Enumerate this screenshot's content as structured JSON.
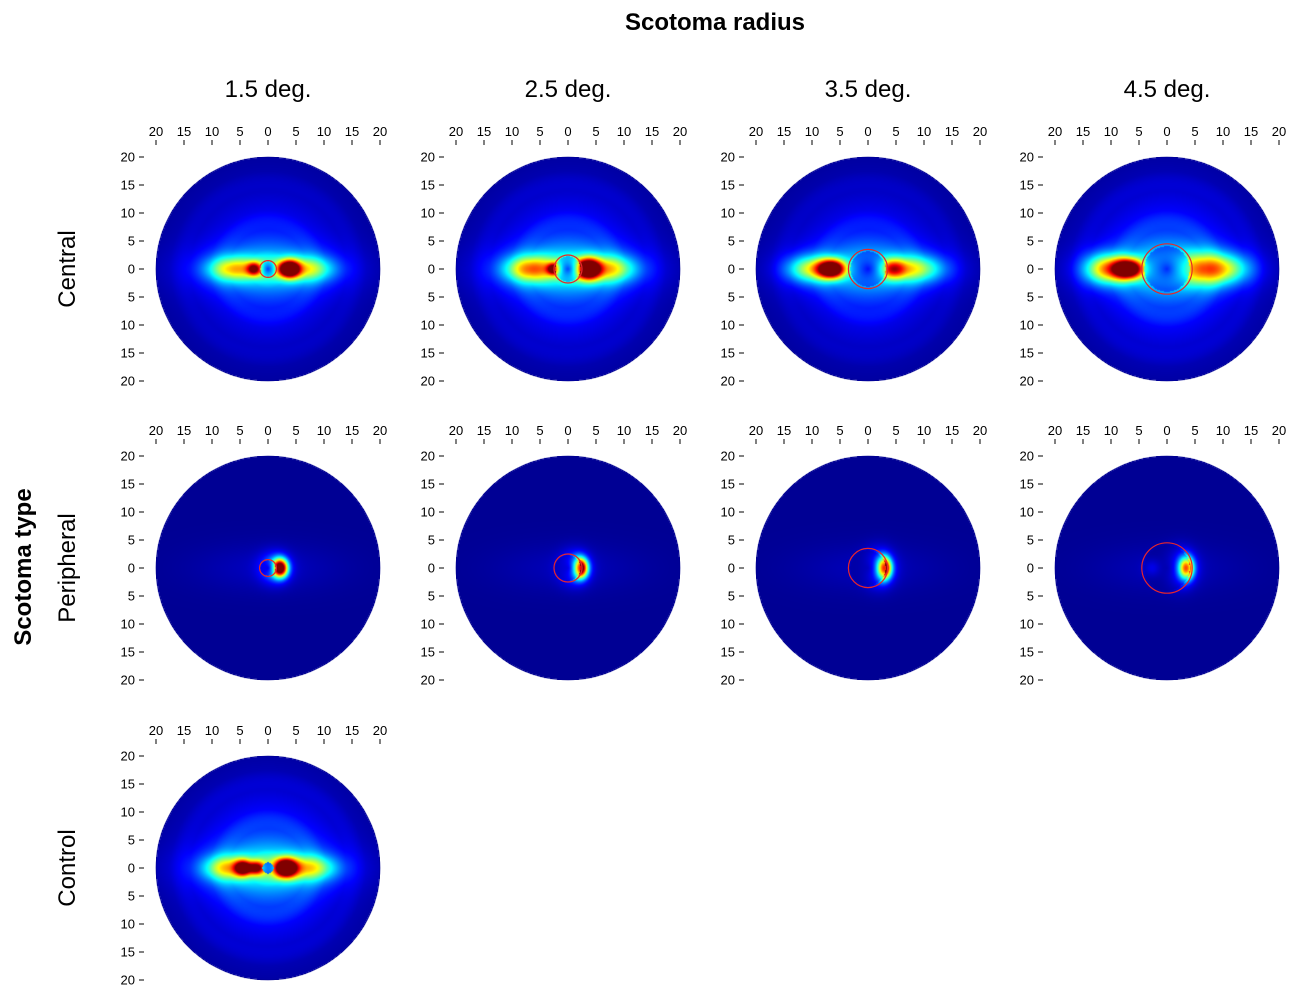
{
  "chart_data": {
    "type": "heatmap",
    "title": "Scotoma radius",
    "ylabel": "Scotoma type",
    "column_labels": [
      "1.5 deg.",
      "2.5 deg.",
      "3.5 deg.",
      "4.5 deg."
    ],
    "row_labels": [
      "Central",
      "Peripheral",
      "Control"
    ],
    "x_ticks": [
      "20",
      "15",
      "10",
      "5",
      "0",
      "5",
      "10",
      "15",
      "20"
    ],
    "y_ticks": [
      "20",
      "15",
      "10",
      "5",
      "0",
      "5",
      "10",
      "15",
      "20"
    ],
    "x_values": [
      -20,
      -15,
      -10,
      -5,
      0,
      5,
      10,
      15,
      20
    ],
    "y_values": [
      20,
      15,
      10,
      5,
      0,
      -5,
      -10,
      -15,
      -20
    ],
    "xlim": [
      -20,
      20
    ],
    "ylim": [
      -20,
      20
    ],
    "field_radius_deg": 20,
    "colormap": "jet",
    "colors": {
      "scotoma_outline": "#e8262b",
      "background": "#00008f"
    },
    "panels": [
      {
        "row": "Central",
        "radius_deg": 1.5,
        "scotoma": 1.5,
        "base": 0.16,
        "spread": 0.5,
        "inner_ring": 0.18,
        "hotspots": [
          {
            "x": 3.8,
            "y": 0,
            "sx": 1.2,
            "sy": 1.0,
            "amp": 1.0
          },
          {
            "x": -2.5,
            "y": 0,
            "sx": 0.9,
            "sy": 0.8,
            "amp": 0.52
          },
          {
            "x": -6,
            "y": 0,
            "sx": 3.2,
            "sy": 1.5,
            "amp": 0.42
          },
          {
            "x": 6.5,
            "y": 0,
            "sx": 3.5,
            "sy": 1.5,
            "amp": 0.38
          }
        ]
      },
      {
        "row": "Central",
        "radius_deg": 2.5,
        "scotoma": 2.5,
        "base": 0.18,
        "spread": 0.58,
        "inner_ring": 0.12,
        "hotspots": [
          {
            "x": 3.6,
            "y": 0,
            "sx": 1.4,
            "sy": 1.2,
            "amp": 1.0
          },
          {
            "x": -2.6,
            "y": 0,
            "sx": 0.8,
            "sy": 0.7,
            "amp": 0.58
          },
          {
            "x": -6.5,
            "y": 0,
            "sx": 3.2,
            "sy": 1.6,
            "amp": 0.48
          },
          {
            "x": 7,
            "y": 0,
            "sx": 3.5,
            "sy": 1.6,
            "amp": 0.4
          }
        ]
      },
      {
        "row": "Central",
        "radius_deg": 3.5,
        "scotoma": 3.5,
        "base": 0.16,
        "spread": 0.52,
        "inner_ring": 0.08,
        "hotspots": [
          {
            "x": -6.5,
            "y": 0,
            "sx": 1.6,
            "sy": 1.1,
            "amp": 1.0
          },
          {
            "x": 4.5,
            "y": 0,
            "sx": 1.6,
            "sy": 1.2,
            "amp": 0.46
          },
          {
            "x": -10,
            "y": 0,
            "sx": 3,
            "sy": 1.6,
            "amp": 0.42
          },
          {
            "x": 8.5,
            "y": 0,
            "sx": 3.5,
            "sy": 1.6,
            "amp": 0.36
          }
        ]
      },
      {
        "row": "Central",
        "radius_deg": 4.5,
        "scotoma": 4.5,
        "base": 0.2,
        "spread": 0.6,
        "inner_ring": 0.06,
        "hotspots": [
          {
            "x": -7,
            "y": 0,
            "sx": 1.8,
            "sy": 1.2,
            "amp": 1.0
          },
          {
            "x": -11,
            "y": 0,
            "sx": 2.6,
            "sy": 1.8,
            "amp": 0.5
          },
          {
            "x": 6.5,
            "y": 0,
            "sx": 3,
            "sy": 2,
            "amp": 0.38
          },
          {
            "x": 11,
            "y": 0,
            "sx": 3,
            "sy": 1.8,
            "amp": 0.28
          }
        ]
      },
      {
        "row": "Peripheral",
        "radius_deg": 1.5,
        "scotoma": 1.5,
        "base": 0.0,
        "spread": 0.12,
        "inner_ring": 0.0,
        "hotspots": [
          {
            "x": 2.2,
            "y": 0,
            "sx": 0.9,
            "sy": 1.1,
            "amp": 1.0
          },
          {
            "x": 1.2,
            "y": 0,
            "sx": 1.8,
            "sy": 1.8,
            "amp": 0.25
          }
        ]
      },
      {
        "row": "Peripheral",
        "radius_deg": 2.5,
        "scotoma": 2.5,
        "base": 0.0,
        "spread": 0.1,
        "inner_ring": 0.0,
        "hotspots": [
          {
            "x": 2.2,
            "y": 0,
            "sx": 0.9,
            "sy": 1.2,
            "amp": 1.0
          },
          {
            "x": 1.2,
            "y": 0,
            "sx": 1.8,
            "sy": 2,
            "amp": 0.22
          }
        ]
      },
      {
        "row": "Peripheral",
        "radius_deg": 3.5,
        "scotoma": 3.5,
        "base": 0.0,
        "spread": 0.1,
        "inner_ring": 0.0,
        "hotspots": [
          {
            "x": 2.8,
            "y": 0,
            "sx": 0.9,
            "sy": 1.3,
            "amp": 1.0
          },
          {
            "x": 2.0,
            "y": 0,
            "sx": 1.8,
            "sy": 2.2,
            "amp": 0.22
          }
        ]
      },
      {
        "row": "Peripheral",
        "radius_deg": 4.5,
        "scotoma": 4.5,
        "base": 0.0,
        "spread": 0.1,
        "inner_ring": 0.0,
        "hotspots": [
          {
            "x": 3.3,
            "y": 0,
            "sx": 0.9,
            "sy": 1.3,
            "amp": 1.0
          },
          {
            "x": 2.5,
            "y": 0,
            "sx": 1.8,
            "sy": 2.2,
            "amp": 0.22
          },
          {
            "x": -2.5,
            "y": 0,
            "sx": 1.0,
            "sy": 1.0,
            "amp": 0.12
          }
        ]
      },
      {
        "row": "Control",
        "radius_deg": 0,
        "scotoma": 0,
        "base": 0.2,
        "spread": 0.55,
        "inner_ring": 0.2,
        "hotspots": [
          {
            "x": 3.2,
            "y": 0,
            "sx": 1.3,
            "sy": 1.1,
            "amp": 1.0
          },
          {
            "x": -4.5,
            "y": 0,
            "sx": 1.0,
            "sy": 0.9,
            "amp": 0.7
          },
          {
            "x": -2.0,
            "y": 0,
            "sx": 1.0,
            "sy": 0.8,
            "amp": 0.55
          },
          {
            "x": -7,
            "y": 0,
            "sx": 3,
            "sy": 1.5,
            "amp": 0.4
          },
          {
            "x": 7,
            "y": 0,
            "sx": 3.5,
            "sy": 1.5,
            "amp": 0.38
          }
        ]
      }
    ]
  }
}
